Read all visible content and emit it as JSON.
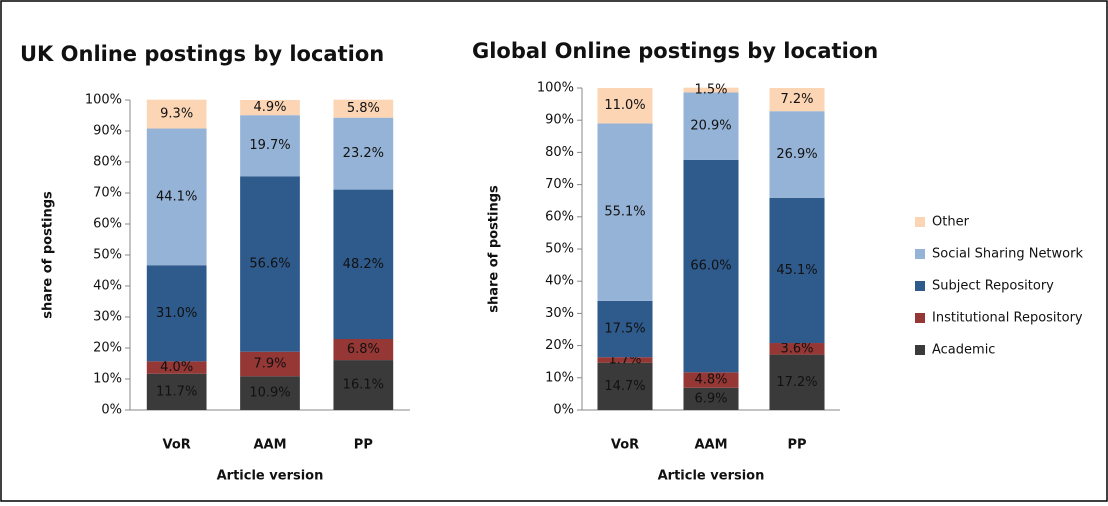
{
  "legend": [
    {
      "name": "Other",
      "color": "#fcd5b5"
    },
    {
      "name": "Social Sharing Network",
      "color": "#95b3d7"
    },
    {
      "name": "Subject Repository",
      "color": "#2e5a8c"
    },
    {
      "name": "Institutional Repository",
      "color": "#953735"
    },
    {
      "name": "Academic",
      "color": "#3a3a3a"
    }
  ],
  "chart_data": [
    {
      "type": "stacked_bar",
      "title": "UK Online postings by location",
      "x_label": "Article version",
      "y_label": "share of postings",
      "categories": [
        "VoR",
        "AAM",
        "PP"
      ],
      "ylim": [
        0,
        100
      ],
      "yticks": [
        {
          "value": 0,
          "label": "0%"
        },
        {
          "value": 10,
          "label": "10%"
        },
        {
          "value": 20,
          "label": "20%"
        },
        {
          "value": 30,
          "label": "30%"
        },
        {
          "value": 40,
          "label": "40%"
        },
        {
          "value": 50,
          "label": "50%"
        },
        {
          "value": 60,
          "label": "60%"
        },
        {
          "value": 70,
          "label": "70%"
        },
        {
          "value": 80,
          "label": "80%"
        },
        {
          "value": 90,
          "label": "90%"
        },
        {
          "value": 100,
          "label": "100%"
        }
      ],
      "series": [
        {
          "legend": 4,
          "values": [
            11.7,
            10.9,
            16.1
          ],
          "value_labels": [
            "11.7%",
            "10.9%",
            "16.1%"
          ]
        },
        {
          "legend": 3,
          "values": [
            4.0,
            7.9,
            6.8
          ],
          "value_labels": [
            "4.0%",
            "7.9%",
            "6.8%"
          ]
        },
        {
          "legend": 2,
          "values": [
            31.0,
            56.6,
            48.2
          ],
          "value_labels": [
            "31.0%",
            "56.6%",
            "48.2%"
          ]
        },
        {
          "legend": 1,
          "values": [
            44.1,
            19.7,
            23.2
          ],
          "value_labels": [
            "44.1%",
            "19.7%",
            "23.2%"
          ]
        },
        {
          "legend": 0,
          "values": [
            9.3,
            4.9,
            5.8
          ],
          "value_labels": [
            "9.3%",
            "4.9%",
            "5.8%"
          ]
        }
      ]
    },
    {
      "type": "stacked_bar",
      "title": "Global Online postings by location",
      "x_label": "Article version",
      "y_label": "share of postings",
      "categories": [
        "VoR",
        "AAM",
        "PP"
      ],
      "ylim": [
        0,
        100
      ],
      "yticks": [
        {
          "value": 0,
          "label": "0%"
        },
        {
          "value": 10,
          "label": "10%"
        },
        {
          "value": 20,
          "label": "20%"
        },
        {
          "value": 30,
          "label": "30%"
        },
        {
          "value": 40,
          "label": "40%"
        },
        {
          "value": 50,
          "label": "50%"
        },
        {
          "value": 60,
          "label": "60%"
        },
        {
          "value": 70,
          "label": "70%"
        },
        {
          "value": 80,
          "label": "80%"
        },
        {
          "value": 90,
          "label": "90%"
        },
        {
          "value": 100,
          "label": "100%"
        }
      ],
      "series": [
        {
          "legend": 4,
          "values": [
            14.7,
            6.9,
            17.2
          ],
          "value_labels": [
            "14.7%",
            "6.9%",
            "17.2%"
          ]
        },
        {
          "legend": 3,
          "values": [
            1.7,
            4.8,
            3.6
          ],
          "value_labels": [
            "1.7%",
            "4.8%",
            "3.6%"
          ]
        },
        {
          "legend": 2,
          "values": [
            17.5,
            66.0,
            45.1
          ],
          "value_labels": [
            "17.5%",
            "66.0%",
            "45.1%"
          ]
        },
        {
          "legend": 1,
          "values": [
            55.1,
            20.9,
            26.9
          ],
          "value_labels": [
            "55.1%",
            "20.9%",
            "26.9%"
          ]
        },
        {
          "legend": 0,
          "values": [
            11.0,
            1.5,
            7.2
          ],
          "value_labels": [
            "11.0%",
            "1.5%",
            "7.2%"
          ]
        }
      ]
    }
  ]
}
